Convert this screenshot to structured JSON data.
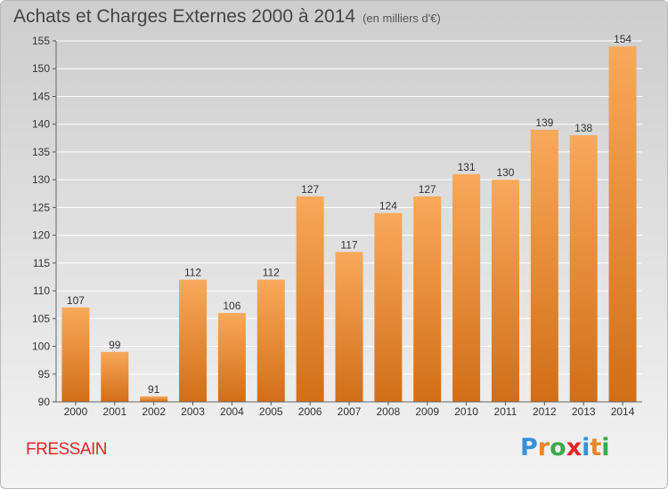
{
  "header": {
    "title": "Achats et Charges Externes 2000 à 2014",
    "subtitle": "(en milliers d'€)"
  },
  "footer": {
    "commune": "FRESSAIN",
    "brand": {
      "letters": [
        "P",
        "r",
        "o",
        "x",
        "i",
        "t",
        "i"
      ],
      "colors": [
        "#3a8fd6",
        "#e8862a",
        "#3ea84a",
        "#e3252a",
        "#3a8fd6",
        "#e8862a",
        "#3ea84a"
      ]
    }
  },
  "colors": {
    "bar_light": "#f8a95a",
    "bar_dark": "#d26e17",
    "grid": "#ffffff"
  },
  "chart_data": {
    "type": "bar",
    "title": "Achats et Charges Externes 2000 à 2014",
    "subtitle": "(en milliers d'€)",
    "xlabel": "",
    "ylabel": "",
    "categories": [
      "2000",
      "2001",
      "2002",
      "2003",
      "2004",
      "2005",
      "2006",
      "2007",
      "2008",
      "2009",
      "2010",
      "2011",
      "2012",
      "2013",
      "2014"
    ],
    "values": [
      107,
      99,
      91,
      112,
      106,
      112,
      127,
      117,
      124,
      127,
      131,
      130,
      139,
      138,
      154
    ],
    "ylim": [
      90,
      155
    ],
    "yticks": [
      90,
      95,
      100,
      105,
      110,
      115,
      120,
      125,
      130,
      135,
      140,
      145,
      150,
      155
    ],
    "grid": true,
    "legend": "none"
  }
}
